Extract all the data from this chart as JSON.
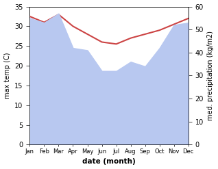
{
  "months": [
    "Jan",
    "Feb",
    "Mar",
    "Apr",
    "May",
    "Jun",
    "Jul",
    "Aug",
    "Sep",
    "Oct",
    "Nov",
    "Dec"
  ],
  "temperature": [
    32.5,
    31.0,
    33.0,
    30.0,
    28.0,
    26.0,
    25.5,
    27.0,
    28.0,
    29.0,
    30.5,
    32.0
  ],
  "precipitation": [
    55.0,
    53.0,
    57.0,
    42.0,
    41.0,
    32.0,
    32.0,
    36.0,
    34.0,
    42.0,
    52.0,
    53.0
  ],
  "temp_color": "#cc4444",
  "precip_fill_color": "#b8c8f0",
  "ylim_left": [
    0,
    35
  ],
  "ylim_right": [
    0,
    60
  ],
  "xlabel": "date (month)",
  "ylabel_left": "max temp (C)",
  "ylabel_right": "med. precipitation (kg/m2)",
  "bg_color": "#ffffff",
  "yticks_left": [
    0,
    5,
    10,
    15,
    20,
    25,
    30,
    35
  ],
  "yticks_right": [
    0,
    10,
    20,
    30,
    40,
    50,
    60
  ]
}
